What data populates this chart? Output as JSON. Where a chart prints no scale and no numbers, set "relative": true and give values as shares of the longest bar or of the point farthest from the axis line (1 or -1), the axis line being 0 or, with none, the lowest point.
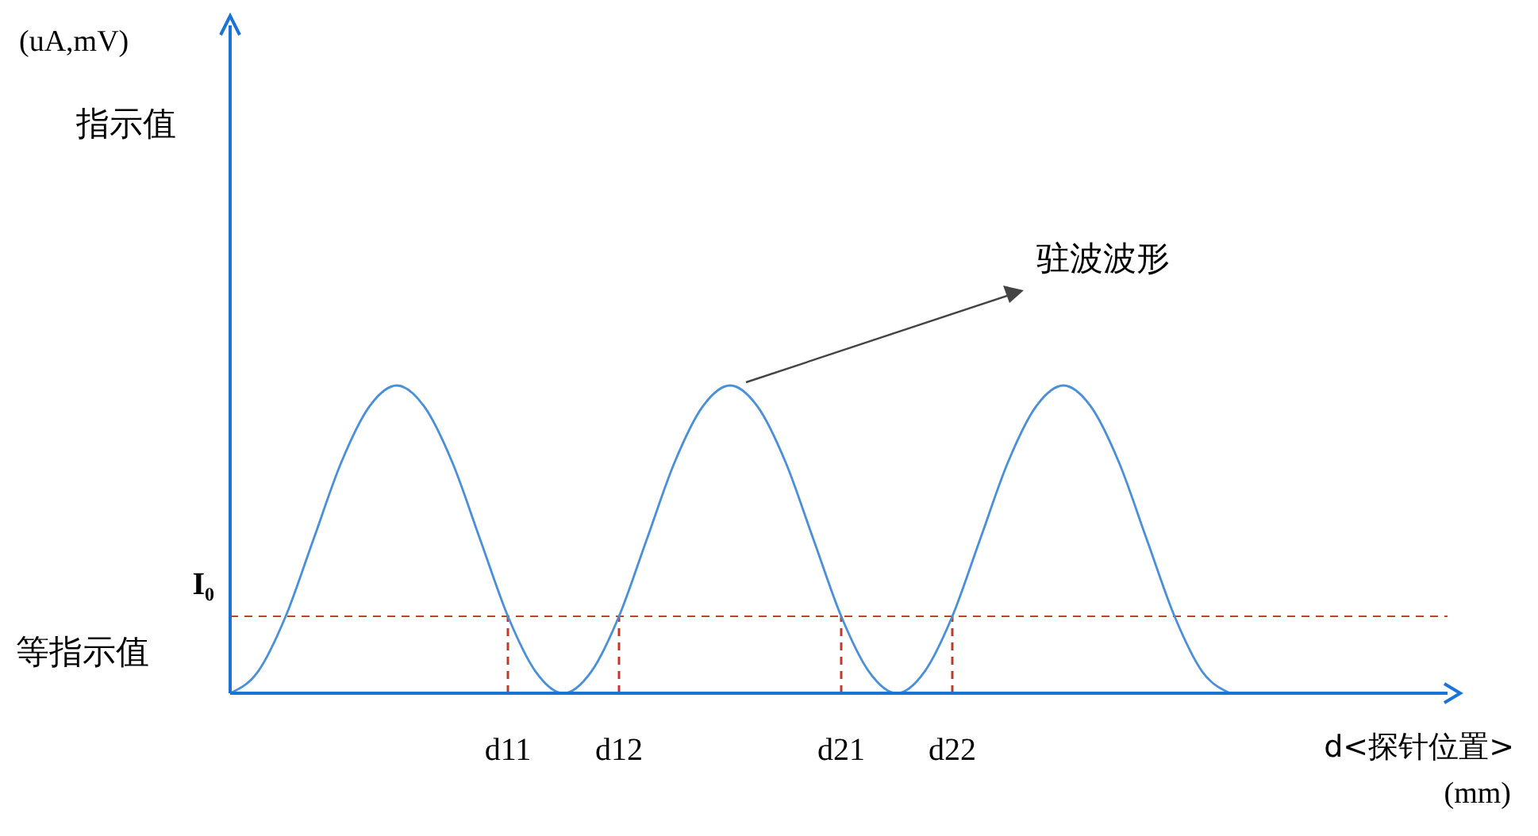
{
  "chart_data": {
    "type": "line",
    "relative": true,
    "xlabel": "d<探针位置>",
    "categories": [
      null,
      null,
      null,
      null,
      null,
      null,
      null,
      null,
      null,
      null,
      "d11",
      null,
      null,
      null,
      "d12",
      null,
      null,
      null,
      null,
      null,
      null,
      null,
      "d21",
      null,
      null,
      null,
      "d22",
      null,
      null,
      null,
      null,
      null,
      null,
      null,
      null,
      null,
      null,
      null,
      null,
      null,
      null,
      null,
      null,
      null
    ],
    "series": [
      {
        "color": "#4a90d9",
        "values": [
          0,
          0.07,
          0.25,
          0.5,
          0.75,
          0.93,
          1,
          0.93,
          0.75,
          0.5,
          0.25,
          0.07,
          0,
          0.07,
          0.25,
          0.5,
          0.75,
          0.93,
          1,
          0.93,
          0.75,
          0.5,
          0.25,
          0.07,
          0,
          0.07,
          0.25,
          0.5,
          0.75,
          0.93,
          1,
          0.93,
          0.75,
          0.5,
          0.25,
          0.07,
          0,
          null,
          null,
          null,
          null,
          null,
          null,
          null
        ]
      }
    ],
    "ref_lines": [
      {
        "axis": "y",
        "value": 0.25,
        "label": "I₀",
        "color": "#b5482a",
        "line_style": "dashed"
      },
      {
        "axis": "x",
        "value": "d11",
        "color": "#c0392b",
        "line_style": "dashed"
      },
      {
        "axis": "x",
        "value": "d12",
        "color": "#c0392b",
        "line_style": "dashed"
      },
      {
        "axis": "x",
        "value": "d21",
        "color": "#c0392b",
        "line_style": "dashed"
      },
      {
        "axis": "x",
        "value": "d22",
        "color": "#c0392b",
        "line_style": "dashed"
      }
    ],
    "annotations": [
      "(uA,mV)",
      "指示值",
      "等指示值",
      "驻波波形",
      "(mm)"
    ],
    "marker": "none",
    "line_style": "solid"
  }
}
